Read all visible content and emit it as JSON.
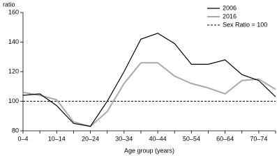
{
  "chart_data": {
    "type": "line",
    "y_label": "ratio",
    "x_label": "Age group (years)",
    "categories": [
      "0–4",
      null,
      "10–14",
      null,
      "20–24",
      null,
      "30–34",
      null,
      "40–44",
      null,
      "50–54",
      null,
      "60–64",
      null,
      "70–74",
      null
    ],
    "series": [
      {
        "name": "2006",
        "color": "#000000",
        "values": [
          104,
          105,
          97,
          85,
          83,
          100,
          120,
          142,
          146,
          139,
          125,
          125,
          128,
          118,
          114,
          103
        ]
      },
      {
        "name": "2016",
        "color": "#aaaaaa",
        "values": [
          106,
          104,
          101,
          86,
          83,
          93,
          112,
          126,
          126,
          117,
          112,
          109,
          105,
          114,
          115,
          108
        ]
      }
    ],
    "reference_line": {
      "name": "Sex Ratio = 100",
      "value": 100
    },
    "ylim": [
      80,
      160
    ],
    "yticks": [
      80,
      100,
      120,
      140,
      160
    ],
    "legend": "top-right"
  }
}
